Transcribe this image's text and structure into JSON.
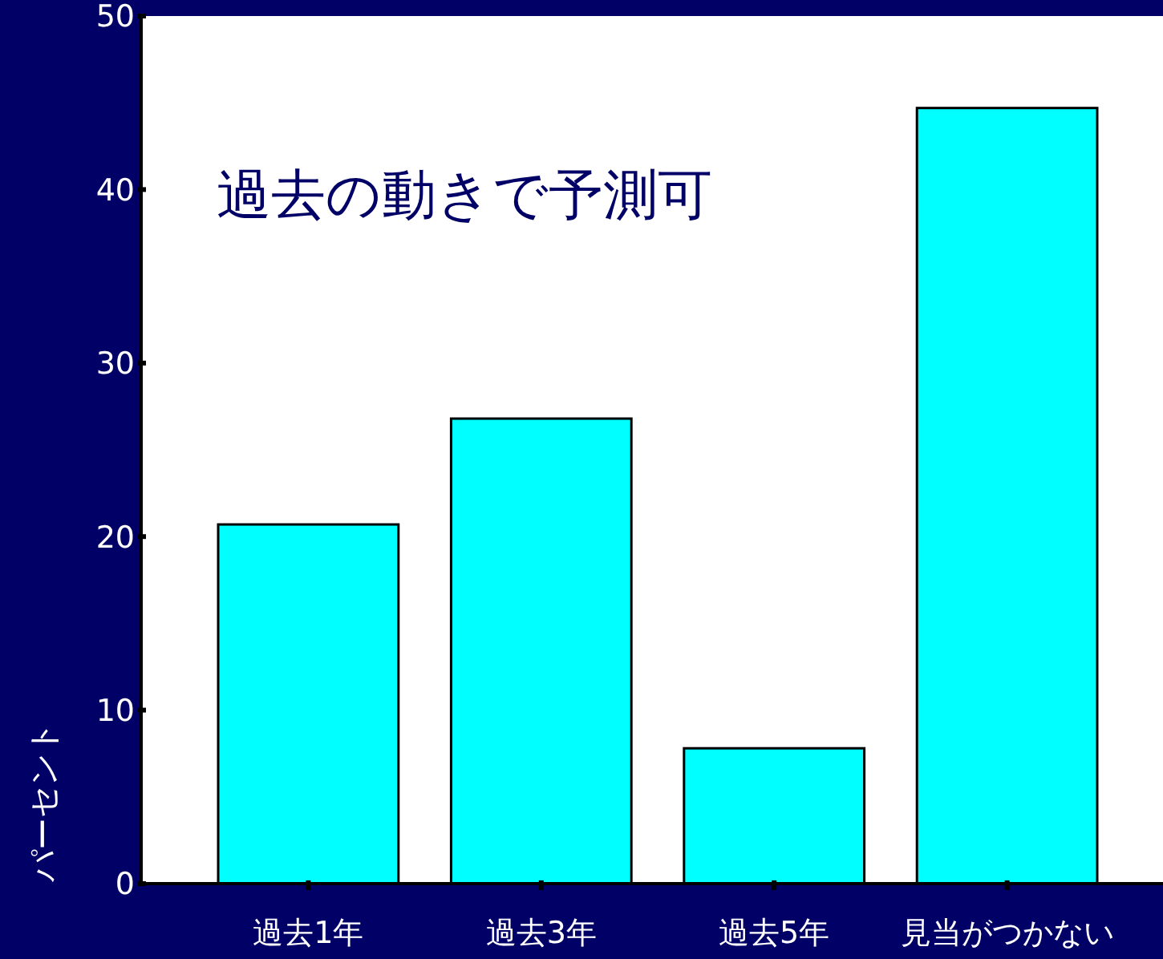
{
  "chart_data": {
    "type": "bar",
    "title": "過去の動きで予測可",
    "ylabel": "パーセント",
    "categories": [
      "過去1年",
      "過去3年",
      "過去5年",
      "見当がつかない"
    ],
    "values": [
      20.7,
      26.8,
      7.8,
      44.7
    ],
    "color": "#00ffff",
    "ylim": [
      0,
      50
    ],
    "yticks": [
      0,
      10,
      20,
      30,
      40,
      50
    ],
    "grid": false
  }
}
